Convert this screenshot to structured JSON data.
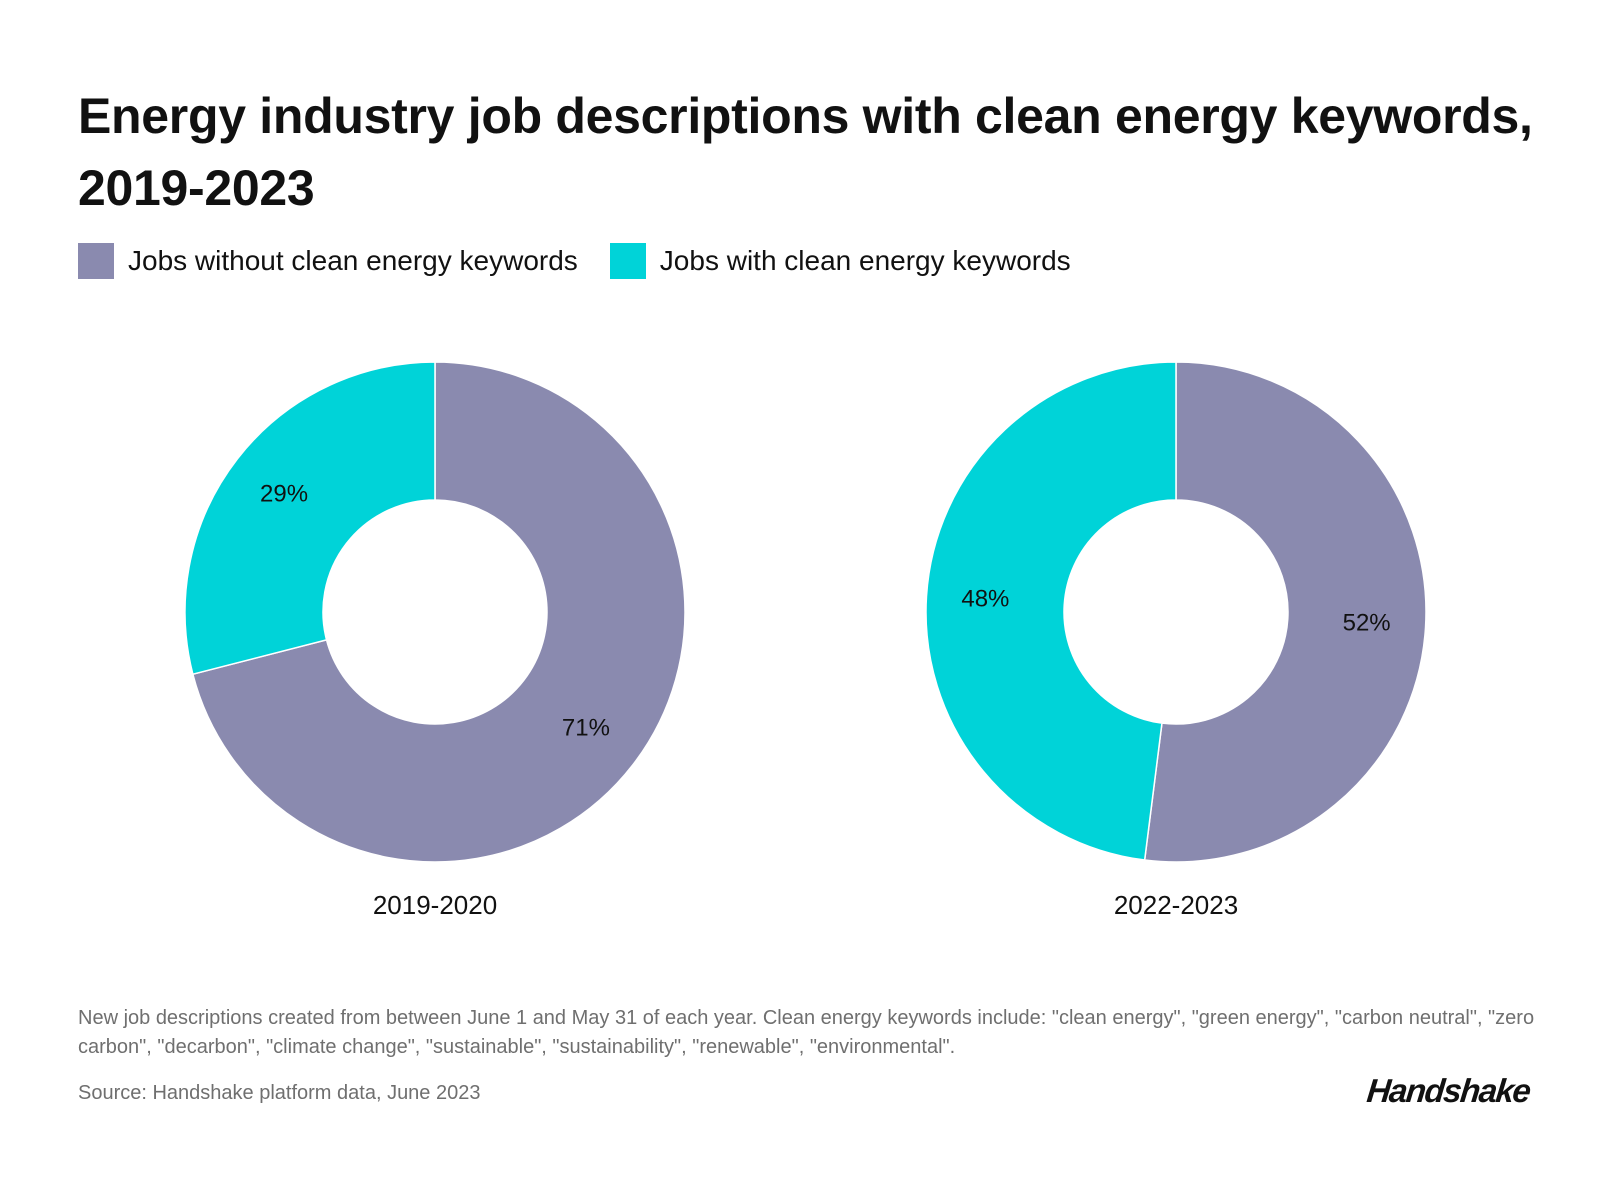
{
  "title": "Energy industry job descriptions with clean energy keywords, 2019-2023",
  "legend": [
    {
      "label": "Jobs without clean energy keywords",
      "color": "#8a8aaf"
    },
    {
      "label": "Jobs with clean energy keywords",
      "color": "#00d3d8"
    }
  ],
  "chart_data": [
    {
      "type": "pie",
      "variant": "donut",
      "caption": "2019-2020",
      "series": [
        {
          "name": "Jobs without clean energy keywords",
          "value": 71,
          "label": "71%",
          "color": "#8a8aaf"
        },
        {
          "name": "Jobs with clean energy keywords",
          "value": 29,
          "label": "29%",
          "color": "#00d3d8"
        }
      ]
    },
    {
      "type": "pie",
      "variant": "donut",
      "caption": "2022-2023",
      "series": [
        {
          "name": "Jobs without clean energy keywords",
          "value": 52,
          "label": "52%",
          "color": "#8a8aaf"
        },
        {
          "name": "Jobs with clean energy keywords",
          "value": 48,
          "label": "48%",
          "color": "#00d3d8"
        }
      ]
    }
  ],
  "footer": {
    "note": "New job descriptions created from between June 1 and May 31 of each year. Clean energy keywords include: \"clean energy\", \"green energy\", \"carbon neutral\", \"zero carbon\", \"decarbon\", \"climate change\", \"sustainable\", \"sustainability\", \"renewable\", \"environmental\".",
    "source": "Source: Handshake platform data, June 2023",
    "logo": "Handshake"
  }
}
